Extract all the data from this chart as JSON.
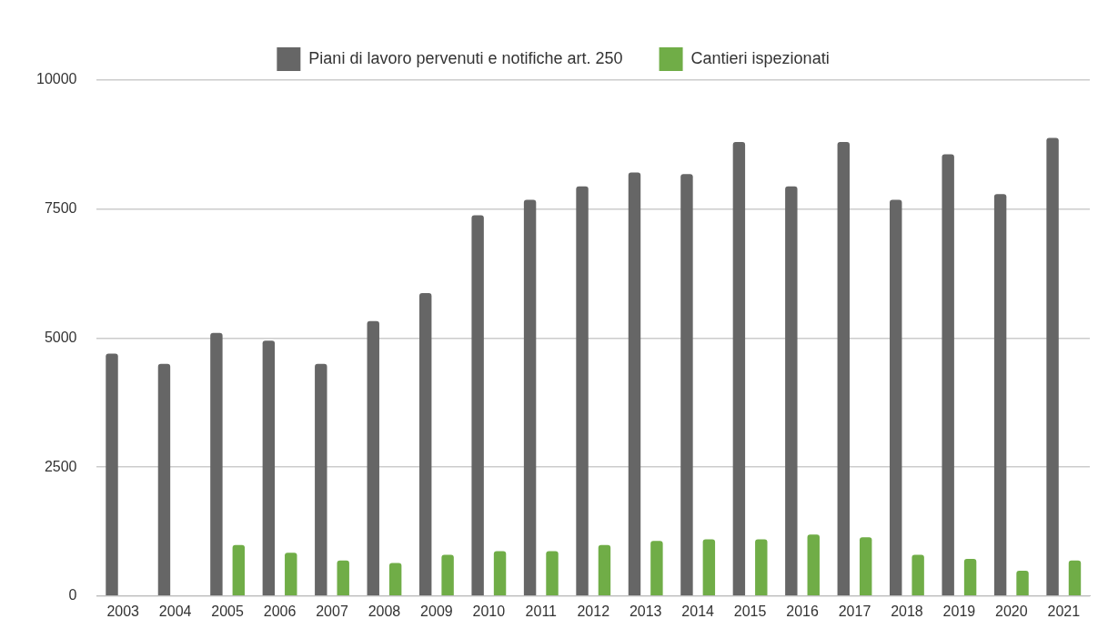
{
  "chart_data": {
    "type": "bar",
    "categories": [
      "2003",
      "2004",
      "2005",
      "2006",
      "2007",
      "2008",
      "2009",
      "2010",
      "2011",
      "2012",
      "2013",
      "2014",
      "2015",
      "2016",
      "2017",
      "2018",
      "2019",
      "2020",
      "2021"
    ],
    "series": [
      {
        "name": "Piani di lavoro pervenuti e notifiche art. 250",
        "color": "#666666",
        "values": [
          4700,
          4500,
          5100,
          4950,
          4500,
          5330,
          5870,
          7380,
          7680,
          7940,
          8210,
          8180,
          8800,
          7940,
          8800,
          7680,
          8560,
          7790,
          8880
        ]
      },
      {
        "name": "Cantieri ispezionati",
        "color": "#70ad47",
        "values": [
          null,
          null,
          990,
          840,
          690,
          640,
          800,
          870,
          870,
          990,
          1070,
          1100,
          1100,
          1190,
          1140,
          800,
          720,
          490,
          690
        ]
      }
    ],
    "ylim": [
      0,
      10000
    ],
    "yticks": [
      0,
      2500,
      5000,
      7500,
      10000
    ],
    "grid": "y",
    "legend": "top"
  }
}
